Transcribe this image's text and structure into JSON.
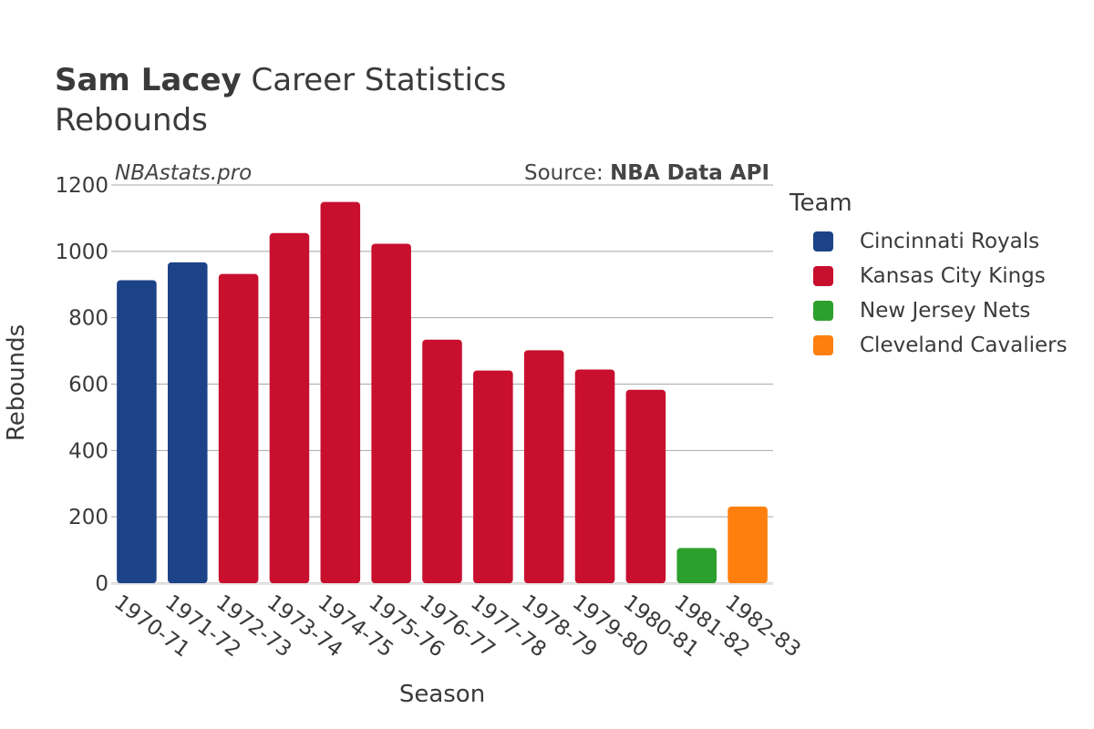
{
  "header": {
    "title_bold": "Sam Lacey",
    "title_rest": "Career Statistics",
    "subtitle": "Rebounds"
  },
  "watermark": "NBAstats.pro",
  "source": {
    "prefix": "Source:",
    "name": "NBA Data API"
  },
  "chart_data": {
    "type": "bar",
    "xlabel": "Season",
    "ylabel": "Rebounds",
    "ylim": [
      0,
      1200
    ],
    "yticks": [
      0,
      200,
      400,
      600,
      800,
      1000,
      1200
    ],
    "grid": true,
    "legend_position": "right",
    "categories": [
      "1970-71",
      "1971-72",
      "1972-73",
      "1973-74",
      "1974-75",
      "1975-76",
      "1976-77",
      "1977-78",
      "1978-79",
      "1979-80",
      "1980-81",
      "1981-82",
      "1982-83"
    ],
    "values": [
      913,
      967,
      932,
      1055,
      1149,
      1023,
      734,
      641,
      702,
      644,
      583,
      106,
      231
    ],
    "teams": [
      "Cincinnati Royals",
      "Cincinnati Royals",
      "Kansas City Kings",
      "Kansas City Kings",
      "Kansas City Kings",
      "Kansas City Kings",
      "Kansas City Kings",
      "Kansas City Kings",
      "Kansas City Kings",
      "Kansas City Kings",
      "Kansas City Kings",
      "New Jersey Nets",
      "Cleveland Cavaliers"
    ],
    "legend": {
      "title": "Team",
      "entries": [
        {
          "name": "Cincinnati Royals",
          "color": "#1c4388"
        },
        {
          "name": "Kansas City Kings",
          "color": "#c8102e"
        },
        {
          "name": "New Jersey Nets",
          "color": "#2ca02c"
        },
        {
          "name": "Cleveland Cavaliers",
          "color": "#ff7f0e"
        }
      ]
    }
  }
}
